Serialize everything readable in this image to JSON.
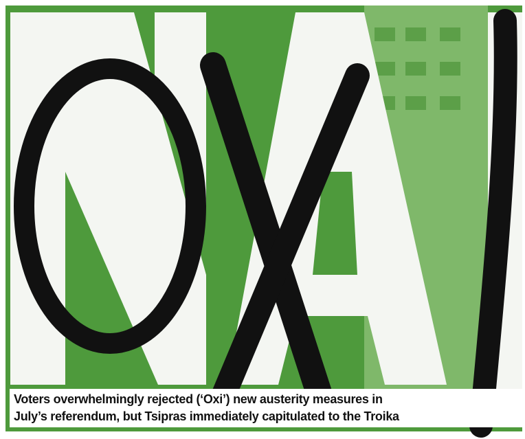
{
  "caption": {
    "lines": [
      "Voters overwhelmingly rejected (‘Oxi’) new austerity measures in",
      "July’s referendum, but Tsipras immediately capitulated to the Troika"
    ]
  }
}
